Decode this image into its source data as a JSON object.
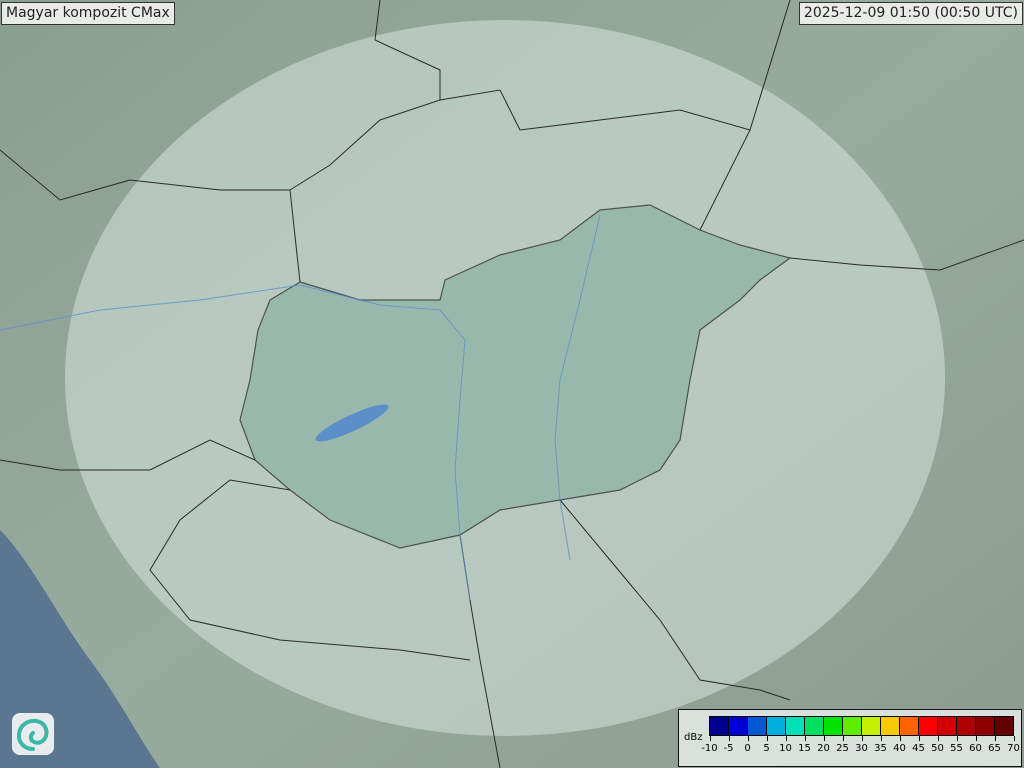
{
  "header": {
    "title": "Magyar kompozit  CMax",
    "timestamp": "2025-12-09 01:50 (00:50 UTC)"
  },
  "map": {
    "land_color": "#8fa497",
    "sea_color": "#5b7690",
    "coverage_color": "#d6e3dc",
    "hungary_fill": "#8fb3a6",
    "border_color": "#2a2a2a",
    "river_color": "#5c8fc8"
  },
  "legend": {
    "unit": "dBz",
    "labels": [
      "-10",
      "-5",
      "0",
      "5",
      "10",
      "15",
      "20",
      "25",
      "30",
      "35",
      "40",
      "45",
      "50",
      "55",
      "60",
      "65",
      "70"
    ],
    "colors": [
      "#00008e",
      "#0000d2",
      "#0058d2",
      "#00b0dc",
      "#00e0b8",
      "#00e060",
      "#00e400",
      "#60ec00",
      "#c4f000",
      "#f8c800",
      "#ff6400",
      "#ff0000",
      "#d40000",
      "#b00000",
      "#8c0000",
      "#640000"
    ]
  },
  "logo": {
    "icon": "swirl-logo-icon"
  }
}
